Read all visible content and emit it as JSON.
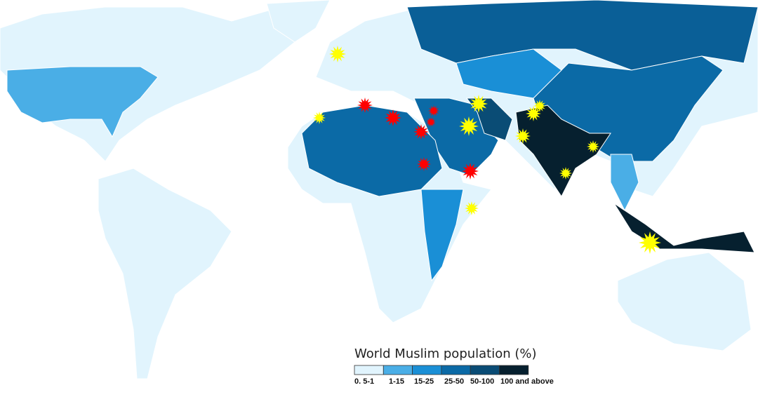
{
  "legend": {
    "title": "World Muslim population (%)",
    "bins": [
      {
        "label": "0. 5-1",
        "color": "#e1f4fd"
      },
      {
        "label": "1-15",
        "color": "#4aaee6"
      },
      {
        "label": "15-25",
        "color": "#1a8fd6"
      },
      {
        "label": "25-50",
        "color": "#0b6aa6"
      },
      {
        "label": "50-100",
        "color": "#0a4c75"
      },
      {
        "label": "100 and above",
        "color": "#06202f"
      }
    ]
  }
}
